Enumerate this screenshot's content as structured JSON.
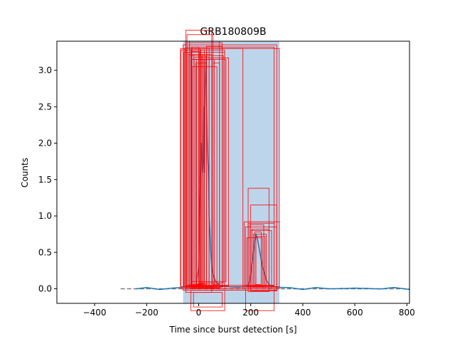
{
  "chart_data": {
    "type": "line",
    "title": "GRB180809B",
    "xlabel": "Time since burst detection [s]",
    "ylabel": "Counts",
    "xlim": [
      -545,
      810
    ],
    "ylim": [
      -0.2,
      3.4
    ],
    "xticks": [
      -400,
      -200,
      0,
      200,
      400,
      600,
      800
    ],
    "yticks": [
      0.0,
      0.5,
      1.0,
      1.5,
      2.0,
      2.5,
      3.0
    ],
    "grid": false,
    "colors": {
      "light_curve": "#1f77b4",
      "background_fit": "#7f7f7f",
      "shaded_interval": "#bcd5ea",
      "boxes": "#ff0000"
    },
    "background_fit": {
      "x": [
        -300,
        810
      ],
      "y": [
        0.0,
        0.0
      ]
    },
    "shaded_interval": {
      "x": [
        -60,
        310
      ]
    },
    "series": [
      {
        "x": [
          -240,
          -200,
          -150,
          -100,
          -60,
          -40,
          -20,
          -10,
          0,
          5,
          10,
          15,
          18,
          20,
          23,
          25,
          28,
          30,
          33,
          35,
          38,
          40,
          43,
          45,
          48,
          50,
          55,
          60,
          65,
          70,
          80,
          100,
          150,
          180,
          190,
          195,
          200,
          205,
          210,
          215,
          220,
          225,
          230,
          235,
          240,
          245,
          250,
          255,
          260,
          270,
          280,
          290,
          300,
          350,
          400,
          450,
          500,
          550,
          600,
          650,
          700,
          750,
          810
        ],
        "y": [
          0.0,
          0.01,
          0.0,
          0.01,
          0.02,
          0.02,
          0.03,
          0.05,
          0.3,
          1.2,
          2.0,
          1.6,
          1.8,
          2.5,
          1.6,
          2.8,
          3.2,
          2.6,
          2.0,
          1.8,
          1.5,
          1.0,
          0.8,
          0.6,
          0.4,
          0.3,
          0.2,
          0.15,
          0.1,
          0.08,
          0.05,
          0.03,
          0.02,
          0.03,
          0.05,
          0.1,
          0.2,
          0.35,
          0.5,
          0.65,
          0.75,
          0.7,
          0.6,
          0.5,
          0.4,
          0.3,
          0.25,
          0.18,
          0.12,
          0.06,
          0.04,
          0.03,
          0.02,
          0.01,
          0.0,
          0.01,
          0.0,
          0.01,
          0.0,
          0.01,
          0.0,
          0.01,
          0.0
        ]
      }
    ],
    "boxes": [
      {
        "x0": -70,
        "x1": 310,
        "y0": 0.03,
        "y1": 3.3
      },
      {
        "x0": -60,
        "x1": 300,
        "y0": -0.02,
        "y1": 3.35
      },
      {
        "x0": -50,
        "x1": 290,
        "y0": 0.05,
        "y1": 3.32
      },
      {
        "x0": -68,
        "x1": 100,
        "y0": 0.0,
        "y1": 3.28
      },
      {
        "x0": -50,
        "x1": 90,
        "y0": 0.02,
        "y1": 3.38
      },
      {
        "x0": -40,
        "x1": 100,
        "y0": 0.03,
        "y1": 3.25
      },
      {
        "x0": -35,
        "x1": 80,
        "y0": 0.01,
        "y1": 3.4
      },
      {
        "x0": -30,
        "x1": 60,
        "y0": 0.04,
        "y1": 3.15
      },
      {
        "x0": -25,
        "x1": 70,
        "y0": 0.02,
        "y1": 3.05
      },
      {
        "x0": -20,
        "x1": 50,
        "y0": 0.05,
        "y1": 3.22
      },
      {
        "x0": -15,
        "x1": 40,
        "y0": 0.03,
        "y1": 3.18
      },
      {
        "x0": -10,
        "x1": 30,
        "y0": 0.06,
        "y1": 3.1
      },
      {
        "x0": -8,
        "x1": 20,
        "y0": 0.07,
        "y1": 3.15
      },
      {
        "x0": 0,
        "x1": 95,
        "y0": 0.08,
        "y1": 3.2
      },
      {
        "x0": 30,
        "x1": 90,
        "y0": 0.05,
        "y1": 3.33
      },
      {
        "x0": 40,
        "x1": 115,
        "y0": 0.04,
        "y1": 3.17
      },
      {
        "x0": 55,
        "x1": 80,
        "y0": 0.06,
        "y1": 3.1
      },
      {
        "x0": -50,
        "x1": 50,
        "y0": -0.05,
        "y1": 3.55
      },
      {
        "x0": -45,
        "x1": 55,
        "y0": 0.0,
        "y1": 3.49
      },
      {
        "x0": -30,
        "x1": 105,
        "y0": 0.1,
        "y1": 3.15
      },
      {
        "x0": -55,
        "x1": 40,
        "y0": 0.02,
        "y1": 3.3
      },
      {
        "x0": -58,
        "x1": 30,
        "y0": 0.03,
        "y1": 3.25
      },
      {
        "x0": -48,
        "x1": 22,
        "y0": 0.04,
        "y1": 3.28
      },
      {
        "x0": -40,
        "x1": 15,
        "y0": 0.05,
        "y1": 3.22
      },
      {
        "x0": -35,
        "x1": 12,
        "y0": 0.06,
        "y1": 3.2
      },
      {
        "x0": -30,
        "x1": 8,
        "y0": 0.05,
        "y1": 3.28
      },
      {
        "x0": -28,
        "x1": 5,
        "y0": 0.04,
        "y1": 3.3
      },
      {
        "x0": -27,
        "x1": 2,
        "y0": 0.03,
        "y1": 3.26
      },
      {
        "x0": -26,
        "x1": 0,
        "y0": 0.02,
        "y1": 3.32
      },
      {
        "x0": 175,
        "x1": 310,
        "y0": 0.0,
        "y1": 0.92
      },
      {
        "x0": 180,
        "x1": 300,
        "y0": 0.02,
        "y1": 0.85
      },
      {
        "x0": 190,
        "x1": 290,
        "y0": 0.04,
        "y1": 0.9
      },
      {
        "x0": 200,
        "x1": 280,
        "y0": 0.0,
        "y1": 0.8
      },
      {
        "x0": 195,
        "x1": 250,
        "y0": 0.03,
        "y1": 0.88
      },
      {
        "x0": 205,
        "x1": 270,
        "y0": 0.05,
        "y1": 0.82
      },
      {
        "x0": 210,
        "x1": 260,
        "y0": 0.02,
        "y1": 0.75
      },
      {
        "x0": 185,
        "x1": 245,
        "y0": 0.04,
        "y1": 0.7
      },
      {
        "x0": 200,
        "x1": 300,
        "y0": -0.03,
        "y1": 1.15
      },
      {
        "x0": 190,
        "x1": 270,
        "y0": -0.04,
        "y1": 1.38
      },
      {
        "x0": 215,
        "x1": 240,
        "y0": 0.06,
        "y1": 0.78
      },
      {
        "x0": 220,
        "x1": 255,
        "y0": 0.05,
        "y1": 0.72
      },
      {
        "x0": -50,
        "x1": 170,
        "y0": 0.0,
        "y1": 3.3
      },
      {
        "x0": -20,
        "x1": 90,
        "y0": -0.25,
        "y1": -0.05
      },
      {
        "x0": -30,
        "x1": 100,
        "y0": -0.3,
        "y1": -0.02
      },
      {
        "x0": 180,
        "x1": 290,
        "y0": -0.3,
        "y1": 0.0
      }
    ]
  }
}
